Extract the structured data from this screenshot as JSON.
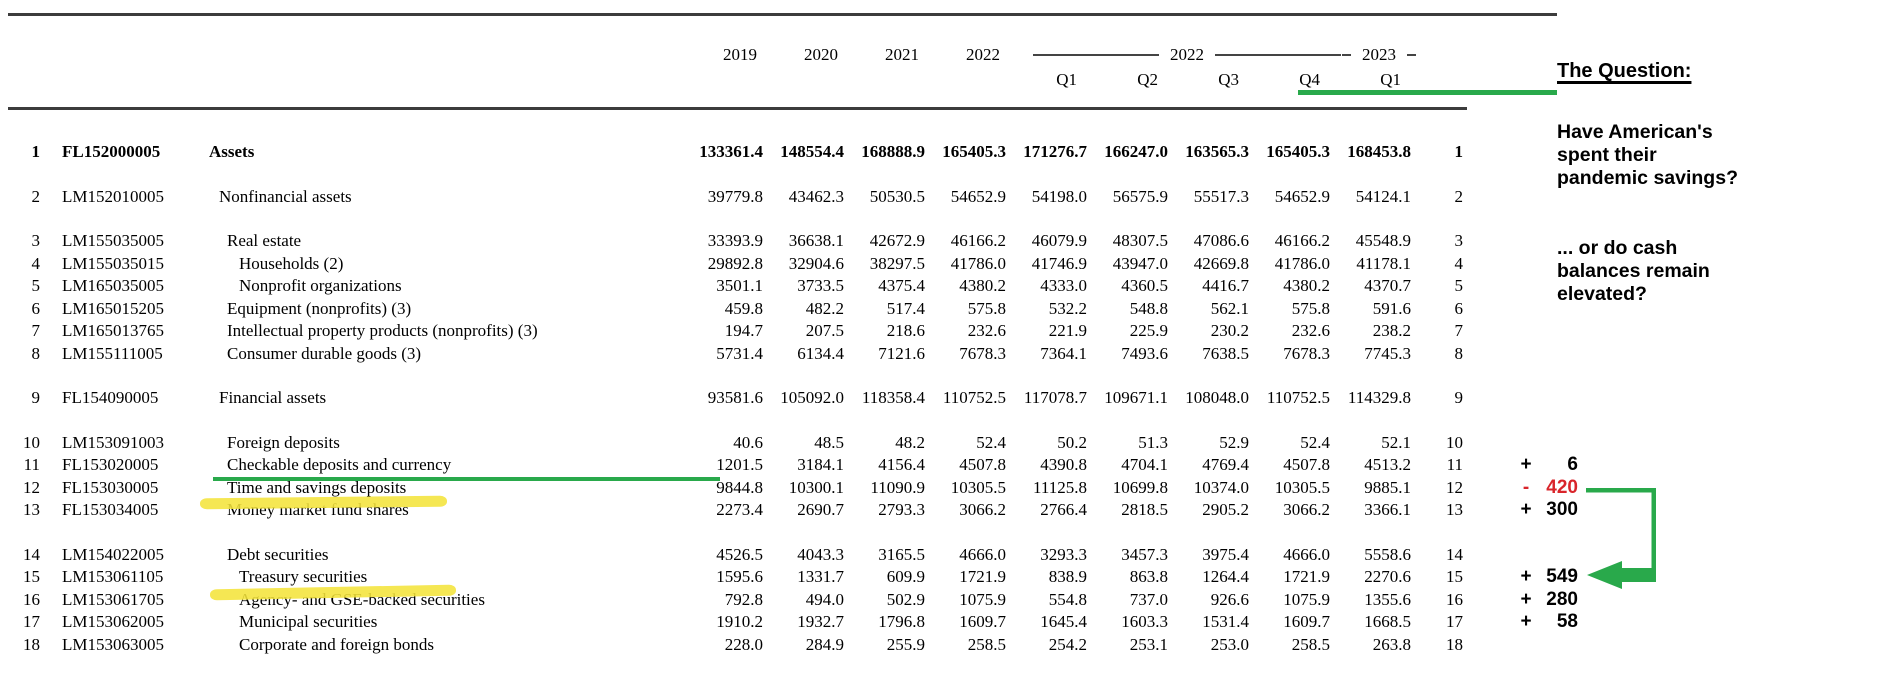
{
  "colors": {
    "green": "#29A94B",
    "red": "#D9252B",
    "yellow": "#F4E43B"
  },
  "header": {
    "years": [
      "2019",
      "2020",
      "2021",
      "2022"
    ],
    "group_2022": "2022",
    "group_2023": "2023",
    "quarters": [
      "Q1",
      "Q2",
      "Q3",
      "Q4",
      "Q1"
    ]
  },
  "table": {
    "rows": [
      {
        "num": "1",
        "code": "FL152000005",
        "label": "Assets",
        "indent": 0,
        "bold": true,
        "gap_before": false,
        "values": [
          "133361.4",
          "148554.4",
          "168888.9",
          "165405.3",
          "171276.7",
          "166247.0",
          "163565.3",
          "165405.3",
          "168453.8"
        ],
        "ann": null
      },
      {
        "num": "2",
        "code": "LM152010005",
        "label": "Nonfinancial assets",
        "indent": 1,
        "bold": false,
        "gap_before": true,
        "values": [
          "39779.8",
          "43462.3",
          "50530.5",
          "54652.9",
          "54198.0",
          "56575.9",
          "55517.3",
          "54652.9",
          "54124.1"
        ],
        "ann": null
      },
      {
        "num": "3",
        "code": "LM155035005",
        "label": "Real estate",
        "indent": 2,
        "bold": false,
        "gap_before": true,
        "values": [
          "33393.9",
          "36638.1",
          "42672.9",
          "46166.2",
          "46079.9",
          "48307.5",
          "47086.6",
          "46166.2",
          "45548.9"
        ],
        "ann": null
      },
      {
        "num": "4",
        "code": "LM155035015",
        "label": "Households (2)",
        "indent": 3,
        "bold": false,
        "gap_before": false,
        "values": [
          "29892.8",
          "32904.6",
          "38297.5",
          "41786.0",
          "41746.9",
          "43947.0",
          "42669.8",
          "41786.0",
          "41178.1"
        ],
        "ann": null
      },
      {
        "num": "5",
        "code": "LM165035005",
        "label": "Nonprofit organizations",
        "indent": 3,
        "bold": false,
        "gap_before": false,
        "values": [
          "3501.1",
          "3733.5",
          "4375.4",
          "4380.2",
          "4333.0",
          "4360.5",
          "4416.7",
          "4380.2",
          "4370.7"
        ],
        "ann": null
      },
      {
        "num": "6",
        "code": "LM165015205",
        "label": "Equipment (nonprofits) (3)",
        "indent": 2,
        "bold": false,
        "gap_before": false,
        "values": [
          "459.8",
          "482.2",
          "517.4",
          "575.8",
          "532.2",
          "548.8",
          "562.1",
          "575.8",
          "591.6"
        ],
        "ann": null
      },
      {
        "num": "7",
        "code": "LM165013765",
        "label": "Intellectual property products (nonprofits) (3)",
        "indent": 2,
        "bold": false,
        "gap_before": false,
        "values": [
          "194.7",
          "207.5",
          "218.6",
          "232.6",
          "221.9",
          "225.9",
          "230.2",
          "232.6",
          "238.2"
        ],
        "ann": null
      },
      {
        "num": "8",
        "code": "LM155111005",
        "label": "Consumer durable goods (3)",
        "indent": 2,
        "bold": false,
        "gap_before": false,
        "values": [
          "5731.4",
          "6134.4",
          "7121.6",
          "7678.3",
          "7364.1",
          "7493.6",
          "7638.5",
          "7678.3",
          "7745.3"
        ],
        "ann": null
      },
      {
        "num": "9",
        "code": "FL154090005",
        "label": "Financial assets",
        "indent": 1,
        "bold": false,
        "gap_before": true,
        "values": [
          "93581.6",
          "105092.0",
          "118358.4",
          "110752.5",
          "117078.7",
          "109671.1",
          "108048.0",
          "110752.5",
          "114329.8"
        ],
        "ann": null
      },
      {
        "num": "10",
        "code": "LM153091003",
        "label": "Foreign deposits",
        "indent": 2,
        "bold": false,
        "gap_before": true,
        "values": [
          "40.6",
          "48.5",
          "48.2",
          "52.4",
          "50.2",
          "51.3",
          "52.9",
          "52.4",
          "52.1"
        ],
        "ann": null
      },
      {
        "num": "11",
        "code": "FL153020005",
        "label": "Checkable deposits and currency",
        "indent": 2,
        "bold": false,
        "gap_before": false,
        "values": [
          "1201.5",
          "3184.1",
          "4156.4",
          "4507.8",
          "4390.8",
          "4704.1",
          "4769.4",
          "4507.8",
          "4513.2"
        ],
        "ann": {
          "sign": "+",
          "value": "6",
          "red": false
        }
      },
      {
        "num": "12",
        "code": "FL153030005",
        "label": "Time and savings deposits",
        "indent": 2,
        "bold": false,
        "gap_before": false,
        "values": [
          "9844.8",
          "10300.1",
          "11090.9",
          "10305.5",
          "11125.8",
          "10699.8",
          "10374.0",
          "10305.5",
          "9885.1"
        ],
        "ann": {
          "sign": "-",
          "value": "420",
          "red": true
        }
      },
      {
        "num": "13",
        "code": "FL153034005",
        "label": "Money market fund shares",
        "indent": 2,
        "bold": false,
        "gap_before": false,
        "values": [
          "2273.4",
          "2690.7",
          "2793.3",
          "3066.2",
          "2766.4",
          "2818.5",
          "2905.2",
          "3066.2",
          "3366.1"
        ],
        "ann": {
          "sign": "+",
          "value": "300",
          "red": false
        }
      },
      {
        "num": "14",
        "code": "LM154022005",
        "label": "Debt securities",
        "indent": 2,
        "bold": false,
        "gap_before": true,
        "values": [
          "4526.5",
          "4043.3",
          "3165.5",
          "4666.0",
          "3293.3",
          "3457.3",
          "3975.4",
          "4666.0",
          "5558.6"
        ],
        "ann": null
      },
      {
        "num": "15",
        "code": "LM153061105",
        "label": "Treasury securities",
        "indent": 3,
        "bold": false,
        "gap_before": false,
        "values": [
          "1595.6",
          "1331.7",
          "609.9",
          "1721.9",
          "838.9",
          "863.8",
          "1264.4",
          "1721.9",
          "2270.6"
        ],
        "ann": {
          "sign": "+",
          "value": "549",
          "red": false
        }
      },
      {
        "num": "16",
        "code": "LM153061705",
        "label": "Agency- and GSE-backed securities",
        "indent": 3,
        "bold": false,
        "gap_before": false,
        "values": [
          "792.8",
          "494.0",
          "502.9",
          "1075.9",
          "554.8",
          "737.0",
          "926.6",
          "1075.9",
          "1355.6"
        ],
        "ann": {
          "sign": "+",
          "value": "280",
          "red": false
        }
      },
      {
        "num": "17",
        "code": "LM153062005",
        "label": "Municipal securities",
        "indent": 3,
        "bold": false,
        "gap_before": false,
        "values": [
          "1910.2",
          "1932.7",
          "1796.8",
          "1609.7",
          "1645.4",
          "1603.3",
          "1531.4",
          "1609.7",
          "1668.5"
        ],
        "ann": {
          "sign": "+",
          "value": "58",
          "red": false
        }
      },
      {
        "num": "18",
        "code": "LM153063005",
        "label": "Corporate and foreign bonds",
        "indent": 3,
        "bold": false,
        "gap_before": false,
        "values": [
          "228.0",
          "284.9",
          "255.9",
          "258.5",
          "254.2",
          "253.1",
          "253.0",
          "258.5",
          "263.8"
        ],
        "ann": null
      }
    ]
  },
  "question": {
    "title": "The Question:",
    "para1": [
      "Have American's",
      "spent their",
      "pandemic savings?"
    ],
    "para2": [
      "... or do cash",
      "balances remain",
      "elevated?"
    ]
  }
}
